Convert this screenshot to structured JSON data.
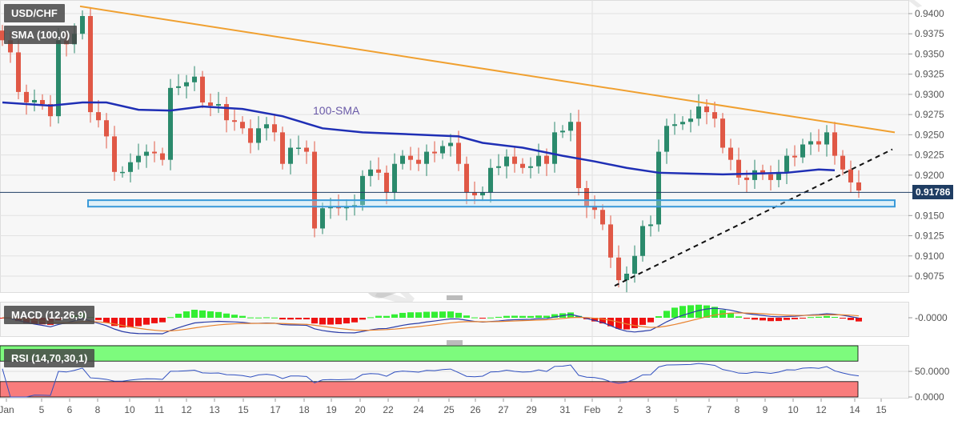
{
  "header": {
    "symbol": "USD/CHF",
    "indicator": "SMA (100,0)",
    "sma_annotation": "100-SMA"
  },
  "watermark": "WikiFX",
  "colors": {
    "bull": "#2b8a6c",
    "bear": "#e05846",
    "sma": "#1f2fb5",
    "resistance": "#f0a030",
    "support": "#111111",
    "zone": "#3a9ad9",
    "macd_pos": "#33ee33",
    "macd_neg": "#ee1111",
    "macd_line": "#2a3ca8",
    "signal_line": "#e8822f",
    "rsi_line": "#3050c0",
    "rsi_over": "#7dfb7d",
    "rsi_under": "#f87c7c",
    "price_tag": "#1f3d63"
  },
  "chart_data": [
    {
      "type": "candlestick",
      "title": "USD/CHF",
      "ylim": [
        0.905,
        0.9415
      ],
      "y_ticks": [
        "0.9400",
        "0.9375",
        "0.9350",
        "0.9325",
        "0.9300",
        "0.9275",
        "0.9250",
        "0.9225",
        "0.9200",
        "0.9150",
        "0.9125",
        "0.9100",
        "0.9075"
      ],
      "x_ticks": [
        "Jan",
        "5",
        "6",
        "8",
        "10",
        "11",
        "12",
        "13",
        "15",
        "17",
        "18",
        "19",
        "20",
        "22",
        "24",
        "25",
        "26",
        "27",
        "29",
        "31",
        "Feb",
        "2",
        "3",
        "5",
        "7",
        "8",
        "9",
        "10",
        "12",
        "14",
        "15"
      ],
      "current_price": "0.91786",
      "closes": [
        0.9367,
        0.9352,
        0.9303,
        0.929,
        0.9293,
        0.9288,
        0.9273,
        0.9367,
        0.9362,
        0.9375,
        0.9397,
        0.9278,
        0.9268,
        0.9248,
        0.9204,
        0.9204,
        0.9216,
        0.9224,
        0.9229,
        0.9227,
        0.9219,
        0.9308,
        0.931,
        0.9315,
        0.9322,
        0.929,
        0.9286,
        0.9288,
        0.9268,
        0.9266,
        0.9258,
        0.924,
        0.9258,
        0.9263,
        0.9253,
        0.9214,
        0.9234,
        0.9234,
        0.9229,
        0.9134,
        0.9159,
        0.9161,
        0.9159,
        0.9161,
        0.9163,
        0.9199,
        0.9207,
        0.9203,
        0.9179,
        0.9214,
        0.9224,
        0.9219,
        0.9214,
        0.9229,
        0.9227,
        0.9236,
        0.924,
        0.9214,
        0.9179,
        0.9175,
        0.9179,
        0.9209,
        0.9211,
        0.9223,
        0.9214,
        0.9209,
        0.9211,
        0.9224,
        0.9214,
        0.9253,
        0.9255,
        0.9266,
        0.9184,
        0.9162,
        0.9157,
        0.9139,
        0.9098,
        0.907,
        0.9078,
        0.91,
        0.9137,
        0.9139,
        0.9229,
        0.9261,
        0.9263,
        0.9266,
        0.927,
        0.9285,
        0.9278,
        0.927,
        0.9234,
        0.9219,
        0.9197,
        0.9194,
        0.9206,
        0.9201,
        0.9194,
        0.9204,
        0.9224,
        0.9222,
        0.9238,
        0.9242,
        0.9238,
        0.9253,
        0.9224,
        0.9207,
        0.9191,
        0.9181
      ],
      "sma_100": [
        [
          0,
          0.929
        ],
        [
          6,
          0.9286
        ],
        [
          10,
          0.929
        ],
        [
          13,
          0.929
        ],
        [
          17,
          0.9281
        ],
        [
          21,
          0.928
        ],
        [
          25,
          0.9285
        ],
        [
          30,
          0.9282
        ],
        [
          35,
          0.9273
        ],
        [
          40,
          0.9258
        ],
        [
          45,
          0.9253
        ],
        [
          50,
          0.9251
        ],
        [
          57,
          0.9248
        ],
        [
          60,
          0.924
        ],
        [
          65,
          0.9234
        ],
        [
          70,
          0.9224
        ],
        [
          74,
          0.9217
        ],
        [
          78,
          0.9209
        ],
        [
          82,
          0.9203
        ],
        [
          86,
          0.9202
        ],
        [
          90,
          0.9201
        ],
        [
          94,
          0.9202
        ],
        [
          98,
          0.9203
        ],
        [
          102,
          0.9207
        ],
        [
          104,
          0.9206
        ]
      ],
      "resistance_line": [
        [
          9.7,
          0.9409
        ],
        [
          111.5,
          0.9253
        ]
      ],
      "support_line": [
        [
          76.5,
          0.9063
        ],
        [
          111.2,
          0.9232
        ]
      ],
      "support_zone": {
        "from_index": 10.7,
        "to_index": 111.5,
        "low": 0.9161,
        "high": 0.9169
      }
    },
    {
      "type": "bar+line",
      "title": "MACD (12,26,9)",
      "y_ticks": [
        "-0.0000"
      ]
    },
    {
      "type": "line",
      "title": "RSI (14,70,30,1)",
      "y_ticks": [
        "50.0000",
        "0.0000"
      ],
      "overbought": 70,
      "oversold": 30
    }
  ]
}
